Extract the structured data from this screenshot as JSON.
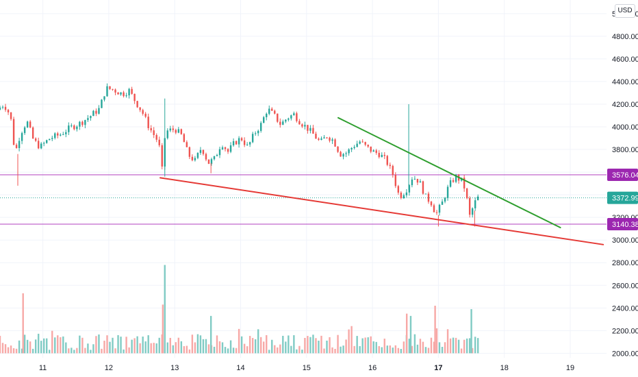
{
  "currency_label": "USD",
  "colors": {
    "up": "#26a69a",
    "down": "#ef5350",
    "up_vol": "#80cbc4",
    "down_vol": "#f7a8a6",
    "resistance_line": "#2e9e2e",
    "support_line": "#e53935",
    "hline": "#b13fbf",
    "price_tag": "#26a69a",
    "level_tag": "#9c27b0",
    "grid": "#f0f3fa"
  },
  "chart_data": {
    "type": "candlestick",
    "y_axis": {
      "range": [
        1960,
        5120
      ],
      "ticks": [
        "2000.00",
        "2200.00",
        "2400.00",
        "2600.00",
        "2800.00",
        "3000.00",
        "3200.00",
        "3400.00",
        "3600.00",
        "3800.00",
        "4000.00",
        "4200.00",
        "4400.00",
        "4600.00",
        "4800.00",
        "5000.00"
      ]
    },
    "x_axis": {
      "ticks": [
        {
          "label": "11",
          "day": 11,
          "bold": false
        },
        {
          "label": "12",
          "day": 12,
          "bold": false
        },
        {
          "label": "13",
          "day": 13,
          "bold": false
        },
        {
          "label": "14",
          "day": 14,
          "bold": false
        },
        {
          "label": "15",
          "day": 15,
          "bold": false
        },
        {
          "label": "16",
          "day": 16,
          "bold": false
        },
        {
          "label": "17",
          "day": 17,
          "bold": true
        },
        {
          "label": "18",
          "day": 18,
          "bold": false
        },
        {
          "label": "19",
          "day": 19,
          "bold": false
        }
      ],
      "range": [
        10.35,
        19.55
      ]
    },
    "price_path": [
      [
        10.35,
        4150
      ],
      [
        10.45,
        4200
      ],
      [
        10.55,
        4100
      ],
      [
        10.62,
        3760
      ],
      [
        10.7,
        3940
      ],
      [
        10.8,
        4050
      ],
      [
        10.9,
        3880
      ],
      [
        11.0,
        3820
      ],
      [
        11.15,
        3900
      ],
      [
        11.3,
        3930
      ],
      [
        11.45,
        3990
      ],
      [
        11.6,
        4030
      ],
      [
        11.75,
        4090
      ],
      [
        11.9,
        4160
      ],
      [
        12.0,
        4340
      ],
      [
        12.1,
        4330
      ],
      [
        12.25,
        4290
      ],
      [
        12.35,
        4320
      ],
      [
        12.45,
        4220
      ],
      [
        12.55,
        4130
      ],
      [
        12.65,
        4000
      ],
      [
        12.8,
        3860
      ],
      [
        12.85,
        3620
      ],
      [
        12.9,
        3960
      ],
      [
        13.05,
        3980
      ],
      [
        13.15,
        3920
      ],
      [
        13.25,
        3750
      ],
      [
        13.35,
        3700
      ],
      [
        13.45,
        3820
      ],
      [
        13.55,
        3680
      ],
      [
        13.65,
        3720
      ],
      [
        13.75,
        3860
      ],
      [
        13.85,
        3780
      ],
      [
        13.95,
        3860
      ],
      [
        14.05,
        3900
      ],
      [
        14.15,
        3820
      ],
      [
        14.25,
        3940
      ],
      [
        14.35,
        4020
      ],
      [
        14.45,
        4160
      ],
      [
        14.55,
        4100
      ],
      [
        14.65,
        4020
      ],
      [
        14.75,
        4080
      ],
      [
        14.85,
        4110
      ],
      [
        14.95,
        4040
      ],
      [
        15.05,
        3990
      ],
      [
        15.15,
        3930
      ],
      [
        15.25,
        3860
      ],
      [
        15.35,
        3920
      ],
      [
        15.45,
        3880
      ],
      [
        15.55,
        3760
      ],
      [
        15.65,
        3770
      ],
      [
        15.75,
        3830
      ],
      [
        15.85,
        3870
      ],
      [
        15.95,
        3820
      ],
      [
        16.05,
        3780
      ],
      [
        16.15,
        3760
      ],
      [
        16.25,
        3700
      ],
      [
        16.35,
        3580
      ],
      [
        16.45,
        3380
      ],
      [
        16.55,
        3440
      ],
      [
        16.65,
        3560
      ],
      [
        16.75,
        3520
      ],
      [
        16.85,
        3380
      ],
      [
        16.95,
        3320
      ],
      [
        17.0,
        3220
      ],
      [
        17.1,
        3330
      ],
      [
        17.2,
        3480
      ],
      [
        17.3,
        3560
      ],
      [
        17.4,
        3520
      ],
      [
        17.45,
        3440
      ],
      [
        17.52,
        3200
      ],
      [
        17.57,
        3300
      ],
      [
        17.63,
        3372.99
      ]
    ],
    "wicks": [
      {
        "day": 10.62,
        "low": 3480
      },
      {
        "day": 12.85,
        "low": 3560,
        "high": 4250
      },
      {
        "day": 13.55,
        "low": 3590
      },
      {
        "day": 16.55,
        "high": 4200
      },
      {
        "day": 17.0,
        "low": 3120
      },
      {
        "day": 17.55,
        "low": 3120
      }
    ],
    "volume_spikes": [
      {
        "day": 10.7,
        "level": 2530
      },
      {
        "day": 12.85,
        "level": 2780
      },
      {
        "day": 12.82,
        "level": 2430
      },
      {
        "day": 13.55,
        "level": 2330
      },
      {
        "day": 16.52,
        "level": 2350
      },
      {
        "day": 16.58,
        "level": 2330
      },
      {
        "day": 16.95,
        "level": 2420
      },
      {
        "day": 17.5,
        "level": 2390
      }
    ],
    "volume_base": 2000,
    "volume_end_day": 17.63,
    "horizontal_levels": [
      {
        "value": 3576.04,
        "label": "3576.04"
      },
      {
        "value": 3140.38,
        "label": "3140.38"
      }
    ],
    "current_price": {
      "value": 3372.99,
      "label": "3372.99"
    },
    "trendlines": [
      {
        "name": "resistance",
        "from": {
          "day": 15.48,
          "value": 4080
        },
        "to": {
          "day": 18.85,
          "value": 3110
        }
      },
      {
        "name": "support",
        "from": {
          "day": 12.78,
          "value": 3550
        },
        "to": {
          "day": 19.5,
          "value": 2960
        }
      }
    ]
  }
}
